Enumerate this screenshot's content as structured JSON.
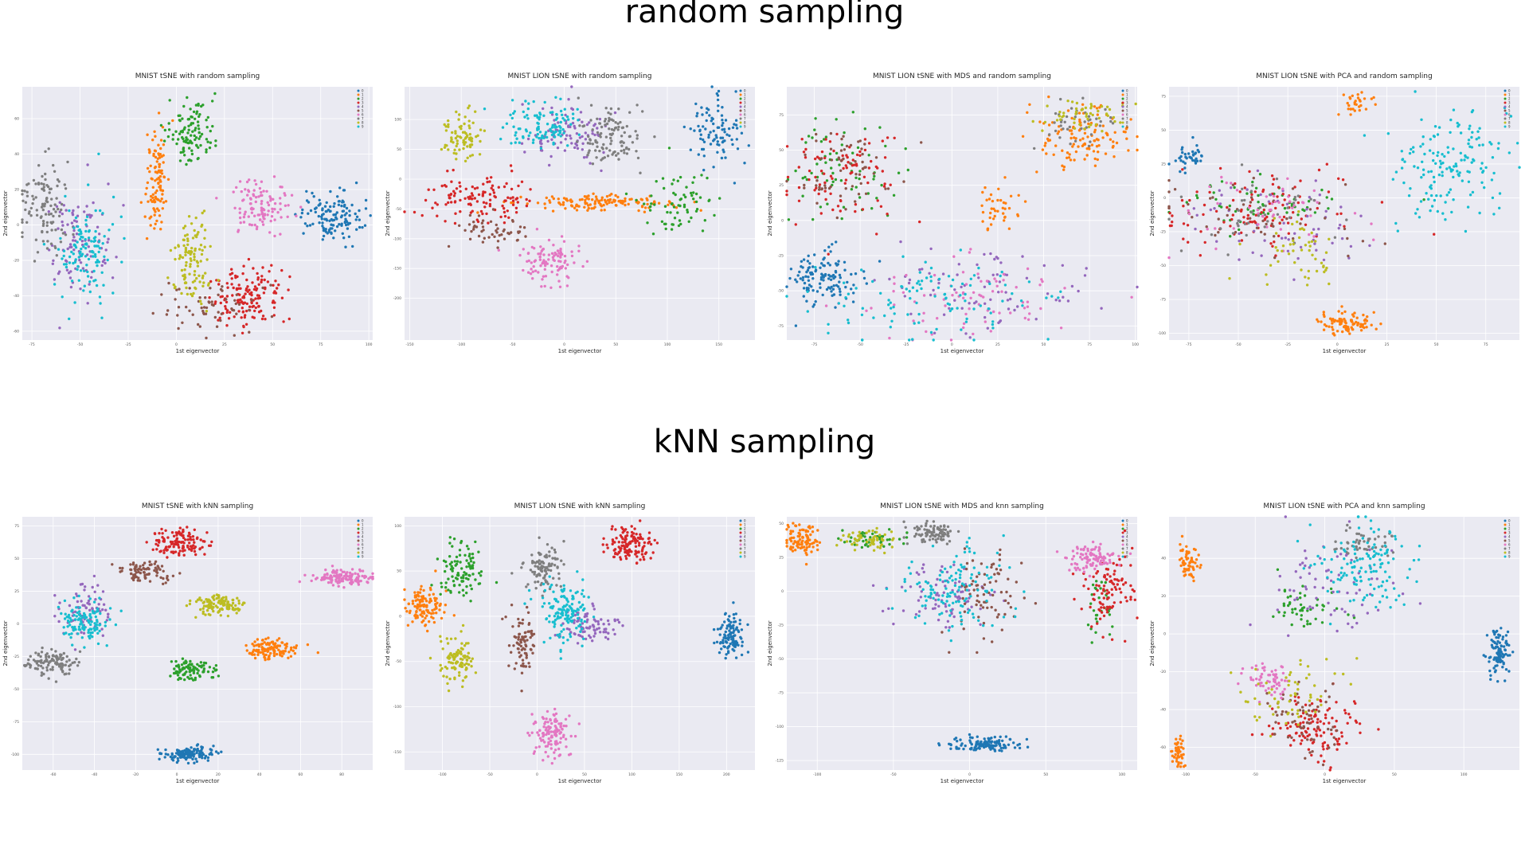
{
  "sections": {
    "random": "random sampling",
    "knn": "kNN sampling"
  },
  "colors": [
    "#1f77b4",
    "#ff7f0e",
    "#2ca02c",
    "#d62728",
    "#9467bd",
    "#8c564b",
    "#e377c2",
    "#7f7f7f",
    "#bcbd22",
    "#17becf"
  ],
  "chart_data": [
    {
      "type": "scatter",
      "title": "MNIST tSNE with random sampling",
      "xlabel": "1st eigenvector",
      "ylabel": "2nd eigenvector",
      "xlim": [
        -80,
        102
      ],
      "ylim": [
        -65,
        78
      ],
      "xticks": [
        "-75",
        "-50",
        "-25",
        "0",
        "25",
        "50",
        "75",
        "100"
      ],
      "yticks": [
        "-60",
        "-40",
        "-20",
        "0",
        "20",
        "40",
        "60"
      ],
      "grid": true,
      "legend": "top-right",
      "legend_labels": [
        "0",
        "1",
        "2",
        "3",
        "4",
        "5",
        "6",
        "7",
        "8",
        "9"
      ],
      "clusters": [
        {
          "cls": 0,
          "x": 80,
          "y": 5,
          "sx": 8,
          "sy": 7,
          "n": 130
        },
        {
          "cls": 1,
          "x": -10,
          "y": 25,
          "sx": 3,
          "sy": 14,
          "n": 110
        },
        {
          "cls": 2,
          "x": 8,
          "y": 53,
          "sx": 6,
          "sy": 9,
          "n": 110
        },
        {
          "cls": 3,
          "x": 36,
          "y": -40,
          "sx": 9,
          "sy": 8,
          "n": 150
        },
        {
          "cls": 4,
          "x": -50,
          "y": -10,
          "sx": 9,
          "sy": 16,
          "n": 100
        },
        {
          "cls": 5,
          "x": 15,
          "y": -45,
          "sx": 14,
          "sy": 8,
          "n": 60
        },
        {
          "cls": 6,
          "x": 43,
          "y": 10,
          "sx": 8,
          "sy": 7,
          "n": 110
        },
        {
          "cls": 7,
          "x": -68,
          "y": 8,
          "sx": 6,
          "sy": 14,
          "n": 110
        },
        {
          "cls": 8,
          "x": 8,
          "y": -20,
          "sx": 5,
          "sy": 12,
          "n": 110
        },
        {
          "cls": 9,
          "x": -48,
          "y": -15,
          "sx": 8,
          "sy": 16,
          "n": 120
        }
      ]
    },
    {
      "type": "scatter",
      "title": "MNIST LION tSNE with random sampling",
      "xlabel": "1st eigenvector",
      "ylabel": "2nd eigenvector",
      "xlim": [
        -155,
        185
      ],
      "ylim": [
        -270,
        155
      ],
      "xticks": [
        "-150",
        "-100",
        "-50",
        "0",
        "50",
        "100",
        "150"
      ],
      "yticks": [
        "-200",
        "-150",
        "-100",
        "-50",
        "0",
        "50",
        "100"
      ],
      "grid": true,
      "legend": "top-right",
      "legend_labels": [
        "0",
        "1",
        "2",
        "3",
        "4",
        "5",
        "6",
        "7",
        "8",
        "9"
      ],
      "clusters": [
        {
          "cls": 0,
          "x": 145,
          "y": 75,
          "sx": 13,
          "sy": 30,
          "n": 90
        },
        {
          "cls": 1,
          "x": 30,
          "y": -40,
          "sx": 35,
          "sy": 6,
          "n": 140
        },
        {
          "cls": 2,
          "x": 110,
          "y": -40,
          "sx": 18,
          "sy": 25,
          "n": 70
        },
        {
          "cls": 3,
          "x": -85,
          "y": -30,
          "sx": 28,
          "sy": 20,
          "n": 120
        },
        {
          "cls": 4,
          "x": 5,
          "y": 75,
          "sx": 22,
          "sy": 25,
          "n": 90
        },
        {
          "cls": 5,
          "x": -70,
          "y": -85,
          "sx": 20,
          "sy": 15,
          "n": 50
        },
        {
          "cls": 6,
          "x": -15,
          "y": -140,
          "sx": 14,
          "sy": 18,
          "n": 100
        },
        {
          "cls": 7,
          "x": 45,
          "y": 70,
          "sx": 15,
          "sy": 25,
          "n": 110
        },
        {
          "cls": 8,
          "x": -100,
          "y": 70,
          "sx": 10,
          "sy": 20,
          "n": 80
        },
        {
          "cls": 9,
          "x": -20,
          "y": 90,
          "sx": 20,
          "sy": 20,
          "n": 110
        }
      ]
    },
    {
      "type": "scatter",
      "title": "MNIST LION tSNE with MDS and random sampling",
      "xlabel": "1st eigenvector",
      "ylabel": "2nd eigenvector",
      "xlim": [
        -90,
        101
      ],
      "ylim": [
        -85,
        95
      ],
      "xticks": [
        "-75",
        "-50",
        "-25",
        "0",
        "25",
        "50",
        "75",
        "100"
      ],
      "yticks": [
        "-75",
        "-50",
        "-25",
        "0",
        "25",
        "50",
        "75"
      ],
      "grid": true,
      "legend": "top-right",
      "legend_labels": [
        "0",
        "1",
        "2",
        "3",
        "4",
        "5",
        "6",
        "7",
        "8",
        "9"
      ],
      "clusters": [
        {
          "cls": 0,
          "x": -70,
          "y": -40,
          "sx": 10,
          "sy": 10,
          "n": 120
        },
        {
          "cls": 1,
          "x": 72,
          "y": 60,
          "sx": 12,
          "sy": 10,
          "n": 120
        },
        {
          "cls": 1,
          "x": 25,
          "y": 10,
          "sx": 6,
          "sy": 8,
          "n": 40
        },
        {
          "cls": 2,
          "x": -60,
          "y": 35,
          "sx": 15,
          "sy": 18,
          "n": 70
        },
        {
          "cls": 3,
          "x": -60,
          "y": 35,
          "sx": 15,
          "sy": 18,
          "n": 90
        },
        {
          "cls": 4,
          "x": 20,
          "y": -50,
          "sx": 30,
          "sy": 15,
          "n": 80
        },
        {
          "cls": 5,
          "x": -60,
          "y": 35,
          "sx": 15,
          "sy": 18,
          "n": 60
        },
        {
          "cls": 6,
          "x": 10,
          "y": -55,
          "sx": 30,
          "sy": 15,
          "n": 80
        },
        {
          "cls": 7,
          "x": 70,
          "y": 70,
          "sx": 10,
          "sy": 8,
          "n": 40
        },
        {
          "cls": 8,
          "x": 72,
          "y": 75,
          "sx": 12,
          "sy": 6,
          "n": 50
        },
        {
          "cls": 9,
          "x": -10,
          "y": -55,
          "sx": 32,
          "sy": 15,
          "n": 110
        }
      ]
    },
    {
      "type": "scatter",
      "title": "MNIST LION tSNE with PCA and random sampling",
      "xlabel": "1st eigenvector",
      "ylabel": "2nd eigenvector",
      "xlim": [
        -85,
        92
      ],
      "ylim": [
        -105,
        82
      ],
      "xticks": [
        "-75",
        "-50",
        "-25",
        "0",
        "25",
        "50",
        "75"
      ],
      "yticks": [
        "-100",
        "-75",
        "-50",
        "-25",
        "0",
        "25",
        "50",
        "75"
      ],
      "grid": true,
      "legend": "top-right",
      "legend_labels": [
        "0",
        "1",
        "2",
        "3",
        "4",
        "5",
        "6",
        "7",
        "8",
        "9"
      ],
      "clusters": [
        {
          "cls": 0,
          "x": -75,
          "y": 30,
          "sx": 5,
          "sy": 5,
          "n": 40
        },
        {
          "cls": 1,
          "x": 5,
          "y": -92,
          "sx": 7,
          "sy": 4,
          "n": 90
        },
        {
          "cls": 1,
          "x": 8,
          "y": 70,
          "sx": 5,
          "sy": 5,
          "n": 30
        },
        {
          "cls": 2,
          "x": -40,
          "y": -5,
          "sx": 25,
          "sy": 10,
          "n": 60
        },
        {
          "cls": 3,
          "x": -40,
          "y": -10,
          "sx": 25,
          "sy": 15,
          "n": 110
        },
        {
          "cls": 4,
          "x": -30,
          "y": -20,
          "sx": 25,
          "sy": 18,
          "n": 60
        },
        {
          "cls": 5,
          "x": -35,
          "y": -15,
          "sx": 25,
          "sy": 12,
          "n": 50
        },
        {
          "cls": 6,
          "x": -35,
          "y": -10,
          "sx": 25,
          "sy": 12,
          "n": 50
        },
        {
          "cls": 7,
          "x": -35,
          "y": -10,
          "sx": 25,
          "sy": 15,
          "n": 40
        },
        {
          "cls": 8,
          "x": -20,
          "y": -40,
          "sx": 10,
          "sy": 15,
          "n": 50
        },
        {
          "cls": 9,
          "x": 55,
          "y": 25,
          "sx": 15,
          "sy": 20,
          "n": 160
        }
      ]
    },
    {
      "type": "scatter",
      "title": "MNIST tSNE with kNN sampling",
      "xlabel": "1st eigenvector",
      "ylabel": "2nd eigenvector",
      "xlim": [
        -75,
        95
      ],
      "ylim": [
        -112,
        82
      ],
      "xticks": [
        "-60",
        "-40",
        "-20",
        "0",
        "20",
        "40",
        "60",
        "80"
      ],
      "yticks": [
        "-100",
        "-75",
        "-50",
        "-25",
        "0",
        "25",
        "50",
        "75"
      ],
      "grid": true,
      "legend": "top-right",
      "legend_labels": [
        "0",
        "1",
        "2",
        "3",
        "4",
        "5",
        "6",
        "7",
        "8",
        "9"
      ],
      "clusters": [
        {
          "cls": 0,
          "x": 5,
          "y": -100,
          "sx": 6,
          "sy": 3,
          "n": 130
        },
        {
          "cls": 1,
          "x": 45,
          "y": -20,
          "sx": 6,
          "sy": 4,
          "n": 120
        },
        {
          "cls": 2,
          "x": 8,
          "y": -35,
          "sx": 5,
          "sy": 4,
          "n": 100
        },
        {
          "cls": 3,
          "x": 0,
          "y": 63,
          "sx": 6,
          "sy": 5,
          "n": 130
        },
        {
          "cls": 4,
          "x": -45,
          "y": 10,
          "sx": 6,
          "sy": 10,
          "n": 80
        },
        {
          "cls": 5,
          "x": -15,
          "y": 40,
          "sx": 6,
          "sy": 4,
          "n": 80
        },
        {
          "cls": 6,
          "x": 80,
          "y": 35,
          "sx": 8,
          "sy": 3,
          "n": 130
        },
        {
          "cls": 7,
          "x": -60,
          "y": -30,
          "sx": 6,
          "sy": 5,
          "n": 110
        },
        {
          "cls": 8,
          "x": 20,
          "y": 15,
          "sx": 6,
          "sy": 4,
          "n": 120
        },
        {
          "cls": 9,
          "x": -45,
          "y": 0,
          "sx": 6,
          "sy": 8,
          "n": 120
        }
      ]
    },
    {
      "type": "scatter",
      "title": "MNIST LION tSNE with kNN sampling",
      "xlabel": "1st eigenvector",
      "ylabel": "2nd eigenvector",
      "xlim": [
        -140,
        230
      ],
      "ylim": [
        -170,
        110
      ],
      "xticks": [
        "-100",
        "-50",
        "0",
        "50",
        "100",
        "150",
        "200"
      ],
      "yticks": [
        "-150",
        "-100",
        "-50",
        "0",
        "50",
        "100"
      ],
      "grid": true,
      "legend": "top-right",
      "legend_labels": [
        "0",
        "1",
        "2",
        "3",
        "4",
        "5",
        "6",
        "7",
        "8",
        "9"
      ],
      "clusters": [
        {
          "cls": 0,
          "x": 205,
          "y": -20,
          "sx": 8,
          "sy": 12,
          "n": 110
        },
        {
          "cls": 1,
          "x": -120,
          "y": 10,
          "sx": 10,
          "sy": 10,
          "n": 120
        },
        {
          "cls": 2,
          "x": -80,
          "y": 50,
          "sx": 12,
          "sy": 14,
          "n": 100
        },
        {
          "cls": 3,
          "x": 95,
          "y": 80,
          "sx": 12,
          "sy": 10,
          "n": 130
        },
        {
          "cls": 4,
          "x": 55,
          "y": -10,
          "sx": 14,
          "sy": 12,
          "n": 80
        },
        {
          "cls": 5,
          "x": -15,
          "y": -30,
          "sx": 7,
          "sy": 15,
          "n": 80
        },
        {
          "cls": 6,
          "x": 15,
          "y": -130,
          "sx": 10,
          "sy": 12,
          "n": 120
        },
        {
          "cls": 7,
          "x": 5,
          "y": 55,
          "sx": 10,
          "sy": 12,
          "n": 100
        },
        {
          "cls": 8,
          "x": -85,
          "y": -50,
          "sx": 10,
          "sy": 12,
          "n": 100
        },
        {
          "cls": 9,
          "x": 30,
          "y": 5,
          "sx": 14,
          "sy": 18,
          "n": 140
        }
      ]
    },
    {
      "type": "scatter",
      "title": "MNIST LION tSNE with MDS and knn sampling",
      "xlabel": "1st eigenvector",
      "ylabel": "2nd eigenvector",
      "xlim": [
        -120,
        110
      ],
      "ylim": [
        -132,
        55
      ],
      "xticks": [
        "-100",
        "-50",
        "0",
        "50",
        "100"
      ],
      "yticks": [
        "-125",
        "-100",
        "-75",
        "-50",
        "-25",
        "0",
        "25",
        "50"
      ],
      "grid": true,
      "legend": "top-right",
      "legend_labels": [
        "0",
        "1",
        "2",
        "3",
        "4",
        "5",
        "6",
        "7",
        "8",
        "9"
      ],
      "clusters": [
        {
          "cls": 0,
          "x": 10,
          "y": -113,
          "sx": 12,
          "sy": 3,
          "n": 120
        },
        {
          "cls": 1,
          "x": -110,
          "y": 38,
          "sx": 6,
          "sy": 6,
          "n": 100
        },
        {
          "cls": 2,
          "x": -65,
          "y": 38,
          "sx": 10,
          "sy": 4,
          "n": 40
        },
        {
          "cls": 2,
          "x": 85,
          "y": -10,
          "sx": 4,
          "sy": 12,
          "n": 30
        },
        {
          "cls": 3,
          "x": 90,
          "y": 0,
          "sx": 8,
          "sy": 12,
          "n": 100
        },
        {
          "cls": 4,
          "x": -15,
          "y": -5,
          "sx": 18,
          "sy": 12,
          "n": 80
        },
        {
          "cls": 5,
          "x": 10,
          "y": -5,
          "sx": 12,
          "sy": 15,
          "n": 80
        },
        {
          "cls": 6,
          "x": 80,
          "y": 25,
          "sx": 8,
          "sy": 5,
          "n": 100
        },
        {
          "cls": 7,
          "x": -25,
          "y": 43,
          "sx": 8,
          "sy": 4,
          "n": 90
        },
        {
          "cls": 8,
          "x": -65,
          "y": 38,
          "sx": 8,
          "sy": 4,
          "n": 60
        },
        {
          "cls": 9,
          "x": -10,
          "y": 0,
          "sx": 15,
          "sy": 15,
          "n": 130
        }
      ]
    },
    {
      "type": "scatter",
      "title": "MNIST LION tSNE with PCA and knn sampling",
      "xlabel": "1st eigenvector",
      "ylabel": "2nd eigenvector",
      "xlim": [
        -112,
        140
      ],
      "ylim": [
        -72,
        62
      ],
      "xticks": [
        "-100",
        "-50",
        "0",
        "50",
        "100"
      ],
      "yticks": [
        "-60",
        "-40",
        "-20",
        "0",
        "20",
        "40"
      ],
      "grid": true,
      "legend": "top-right",
      "legend_labels": [
        "0",
        "1",
        "2",
        "3",
        "4",
        "5",
        "6",
        "7",
        "8",
        "9"
      ],
      "clusters": [
        {
          "cls": 0,
          "x": 125,
          "y": -10,
          "sx": 4,
          "sy": 6,
          "n": 100
        },
        {
          "cls": 1,
          "x": -98,
          "y": 38,
          "sx": 3,
          "sy": 5,
          "n": 60
        },
        {
          "cls": 1,
          "x": -105,
          "y": -62,
          "sx": 2,
          "sy": 4,
          "n": 50
        },
        {
          "cls": 2,
          "x": -15,
          "y": 15,
          "sx": 12,
          "sy": 6,
          "n": 50
        },
        {
          "cls": 3,
          "x": -5,
          "y": -50,
          "sx": 15,
          "sy": 8,
          "n": 120
        },
        {
          "cls": 4,
          "x": 10,
          "y": 25,
          "sx": 25,
          "sy": 15,
          "n": 70
        },
        {
          "cls": 5,
          "x": -15,
          "y": -45,
          "sx": 12,
          "sy": 10,
          "n": 60
        },
        {
          "cls": 6,
          "x": -40,
          "y": -25,
          "sx": 8,
          "sy": 5,
          "n": 60
        },
        {
          "cls": 7,
          "x": 25,
          "y": 48,
          "sx": 12,
          "sy": 4,
          "n": 50
        },
        {
          "cls": 8,
          "x": -20,
          "y": -30,
          "sx": 20,
          "sy": 10,
          "n": 60
        },
        {
          "cls": 9,
          "x": 30,
          "y": 35,
          "sx": 18,
          "sy": 12,
          "n": 130
        }
      ]
    }
  ]
}
